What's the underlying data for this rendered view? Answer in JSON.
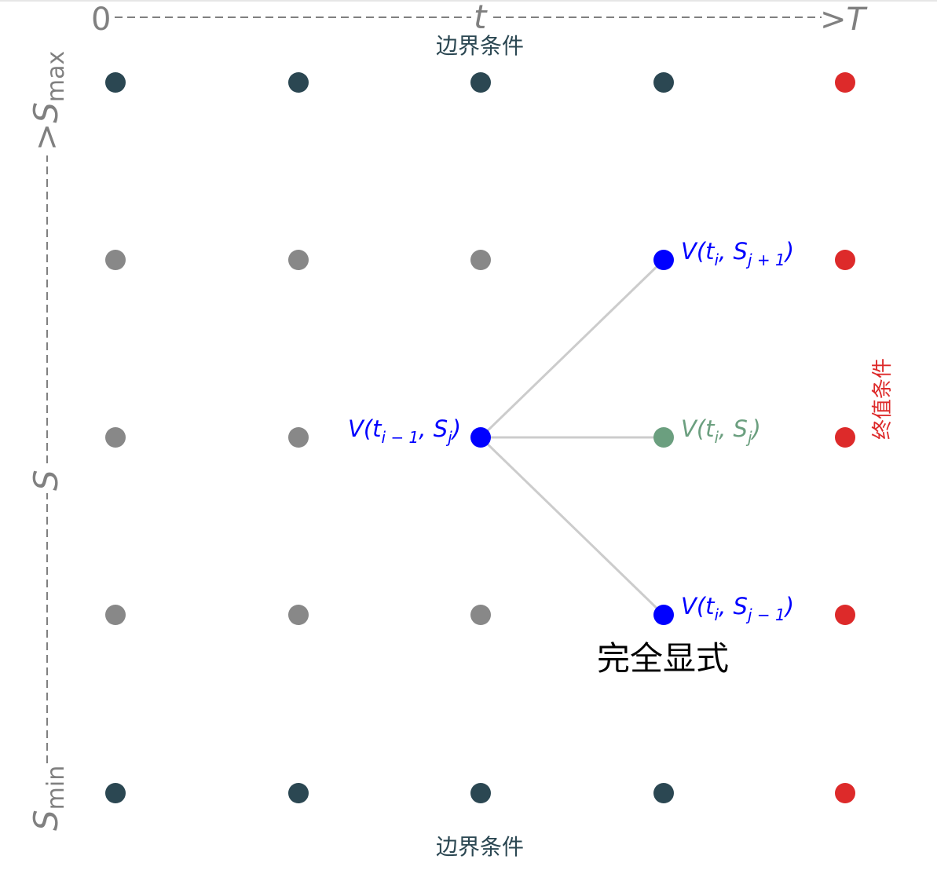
{
  "time_axis": {
    "start_label": "0",
    "mid_label": "t",
    "end_label": ">T",
    "color": "#808080"
  },
  "space_axis": {
    "min_label": "S",
    "min_sub": "min",
    "mid_label": "S",
    "max_label": ">S",
    "max_sub": "max",
    "color": "#808080"
  },
  "boundary_top_label": "边界条件",
  "boundary_bottom_label": "边界条件",
  "terminal_label": "终值条件",
  "scheme_label": "完全显式",
  "grid": {
    "columns": 5,
    "rows": 5,
    "boundary_color": "#2b4752",
    "interior_color": "#888888",
    "terminal_color": "#dd2a2a",
    "highlight_color": "#0000ff",
    "center_color": "#6b9f7f",
    "link_color": "#cccccc"
  },
  "nodes": {
    "source": {
      "col": 2,
      "row": 2,
      "label_pre": "V(t",
      "label_sub": "i − 1",
      "label_mid": ", S",
      "label_sub2": "j",
      "label_post": ")"
    },
    "upper": {
      "col": 3,
      "row": 1,
      "label_pre": "V(t",
      "label_sub": "i",
      "label_mid": ", S",
      "label_sub2": "j + 1",
      "label_post": ")"
    },
    "center": {
      "col": 3,
      "row": 2,
      "label_pre": "V(t",
      "label_sub": "i",
      "label_mid": ", S",
      "label_sub2": "j",
      "label_post": ")"
    },
    "lower": {
      "col": 3,
      "row": 3,
      "label_pre": "V(t",
      "label_sub": "i",
      "label_mid": ", S",
      "label_sub2": "j − 1",
      "label_post": ")"
    }
  }
}
